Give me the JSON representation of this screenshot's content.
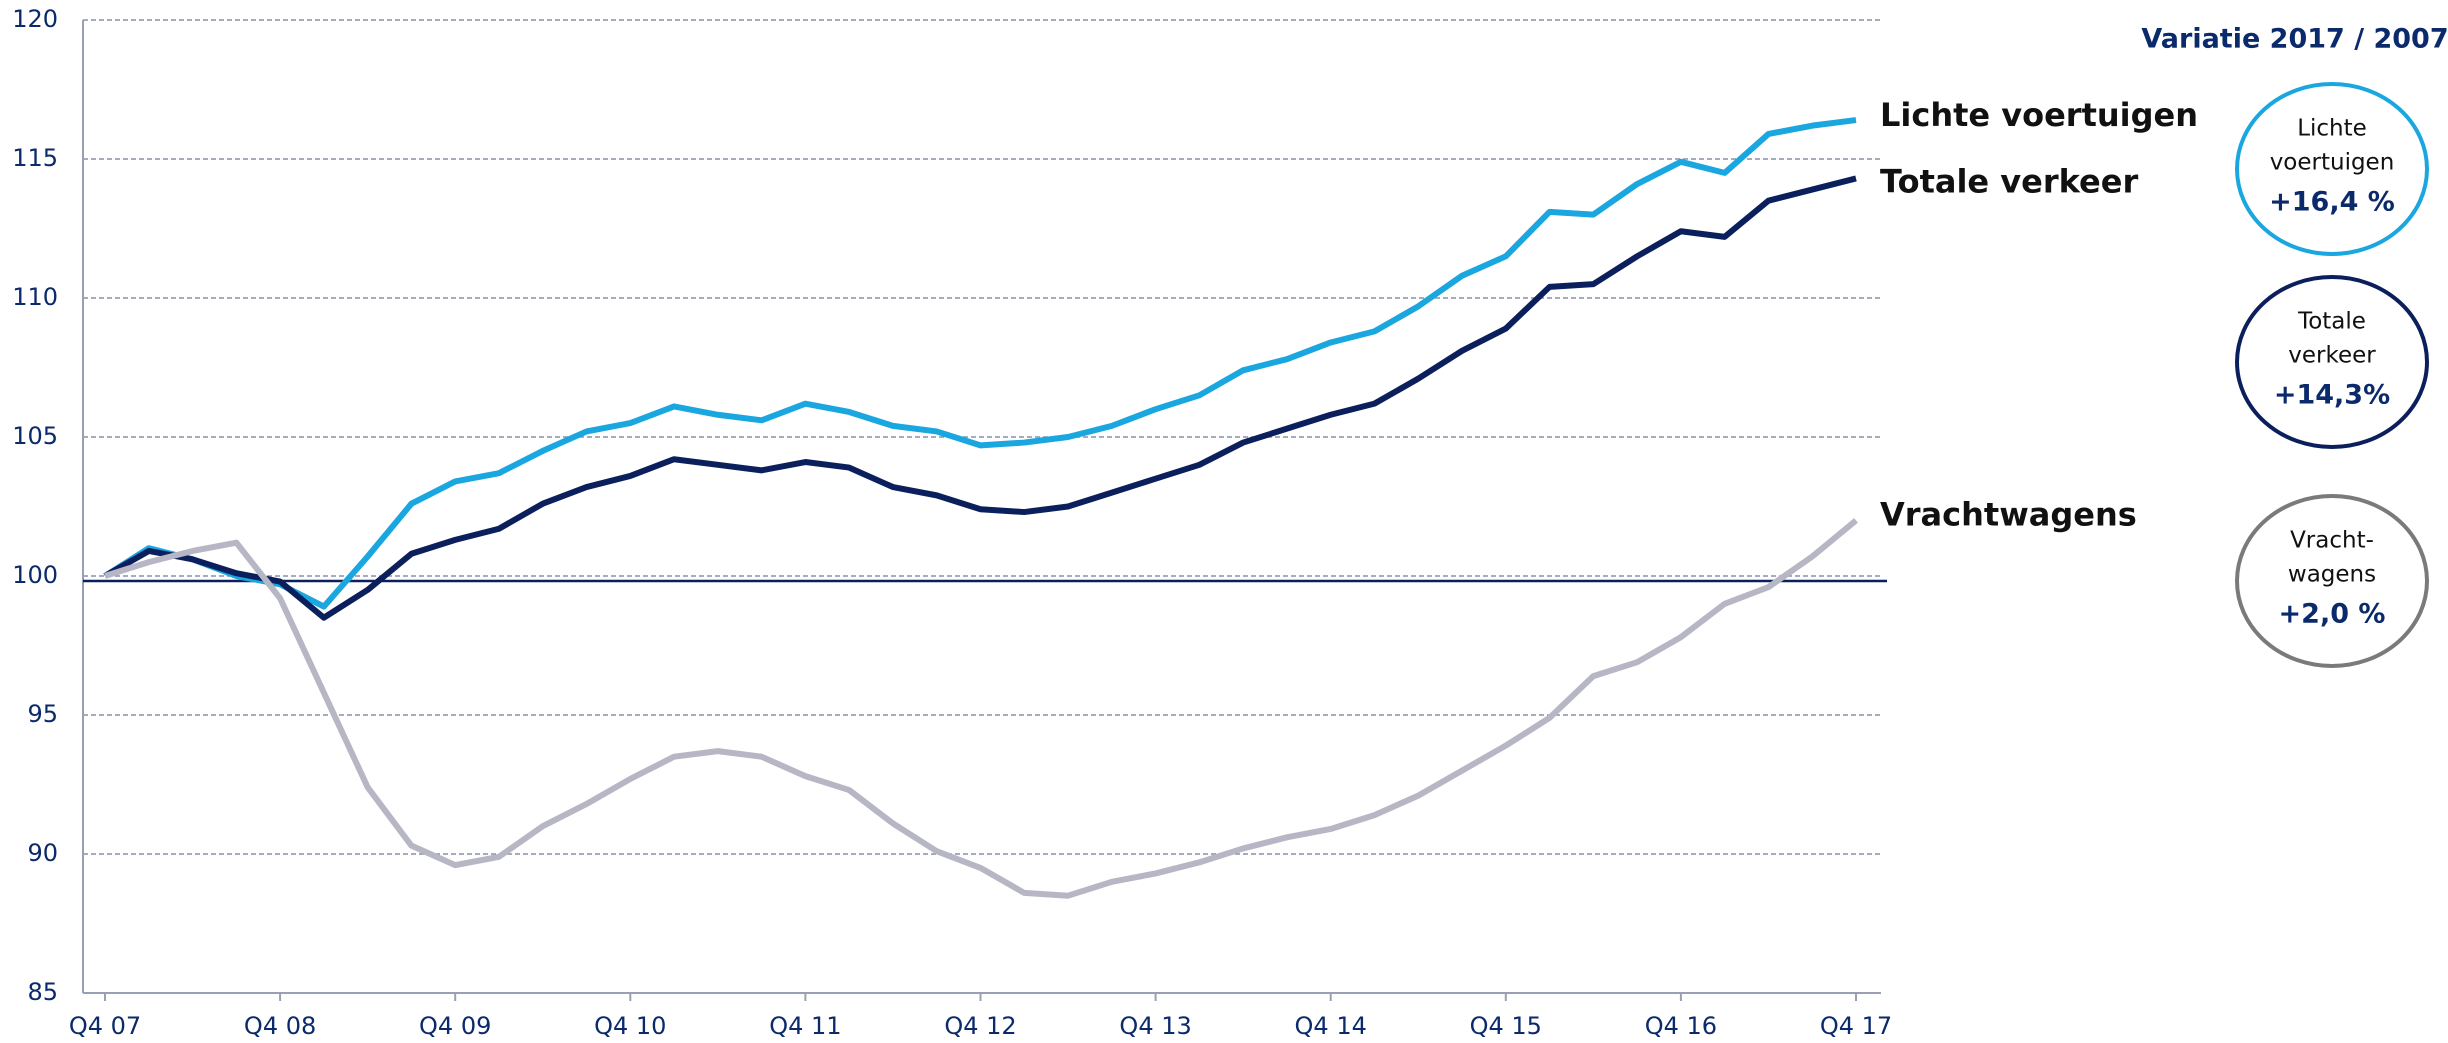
{
  "chart_data": {
    "type": "line",
    "categories": [
      "Q4 07",
      null,
      null,
      null,
      "Q4 08",
      null,
      null,
      null,
      "Q4 09",
      null,
      null,
      null,
      "Q4 10",
      null,
      null,
      null,
      "Q4 11",
      null,
      null,
      null,
      "Q4 12",
      null,
      null,
      null,
      "Q4 13",
      null,
      null,
      null,
      "Q4 14",
      null,
      null,
      null,
      "Q4 15",
      null,
      null,
      null,
      "Q4 16",
      null,
      null,
      null,
      "Q4 17"
    ],
    "series": [
      {
        "name": "Lichte voertuigen",
        "color": "#1aa7e0",
        "values": [
          100,
          101.0,
          100.6,
          100.0,
          99.7,
          98.9,
          100.7,
          102.6,
          103.4,
          103.7,
          104.5,
          105.2,
          105.5,
          106.1,
          105.8,
          105.6,
          106.2,
          105.9,
          105.4,
          105.2,
          104.7,
          104.8,
          105.0,
          105.4,
          106.0,
          106.5,
          107.4,
          107.8,
          108.4,
          108.8,
          109.7,
          110.8,
          111.5,
          113.1,
          113.0,
          114.1,
          114.9,
          114.5,
          115.9,
          116.2,
          116.4
        ]
      },
      {
        "name": "Totale verkeer",
        "color": "#0b1f5c",
        "values": [
          100,
          100.9,
          100.6,
          100.1,
          99.8,
          98.5,
          99.5,
          100.8,
          101.3,
          101.7,
          102.6,
          103.2,
          103.6,
          104.2,
          104.0,
          103.8,
          104.1,
          103.9,
          103.2,
          102.9,
          102.4,
          102.3,
          102.5,
          103.0,
          103.5,
          104.0,
          104.8,
          105.3,
          105.8,
          106.2,
          107.1,
          108.1,
          108.9,
          110.4,
          110.5,
          111.5,
          112.4,
          112.2,
          113.5,
          113.9,
          114.3
        ]
      },
      {
        "name": "Vrachtwagens",
        "color": "#b6b6c4",
        "values": [
          100,
          100.5,
          100.9,
          101.2,
          99.2,
          95.8,
          92.4,
          90.3,
          89.6,
          89.9,
          91.0,
          91.8,
          92.7,
          93.5,
          93.7,
          93.5,
          92.8,
          92.3,
          91.1,
          90.1,
          89.5,
          88.6,
          88.5,
          89.0,
          89.3,
          89.7,
          90.2,
          90.6,
          90.9,
          91.4,
          92.1,
          93.0,
          93.9,
          94.9,
          96.4,
          96.9,
          97.8,
          99.0,
          99.6,
          100.7,
          102.0
        ]
      }
    ],
    "ylim": [
      85,
      120
    ],
    "yticks": [
      85,
      90,
      95,
      100,
      105,
      110,
      115,
      120
    ],
    "grid": true,
    "baseline": 100,
    "panel_title": "Variatie 2017 / 2007",
    "annotations": [
      {
        "lines": [
          "Lichte",
          "voertuigen"
        ],
        "change": "+16,4 %",
        "color": "#1aa7e0"
      },
      {
        "lines": [
          "Totale",
          "verkeer"
        ],
        "change": "+14,3%",
        "color": "#0b1f5c"
      },
      {
        "lines": [
          "Vracht-",
          "wagens"
        ],
        "change": "+2,0 %",
        "color": "#7a7a7a"
      }
    ]
  }
}
